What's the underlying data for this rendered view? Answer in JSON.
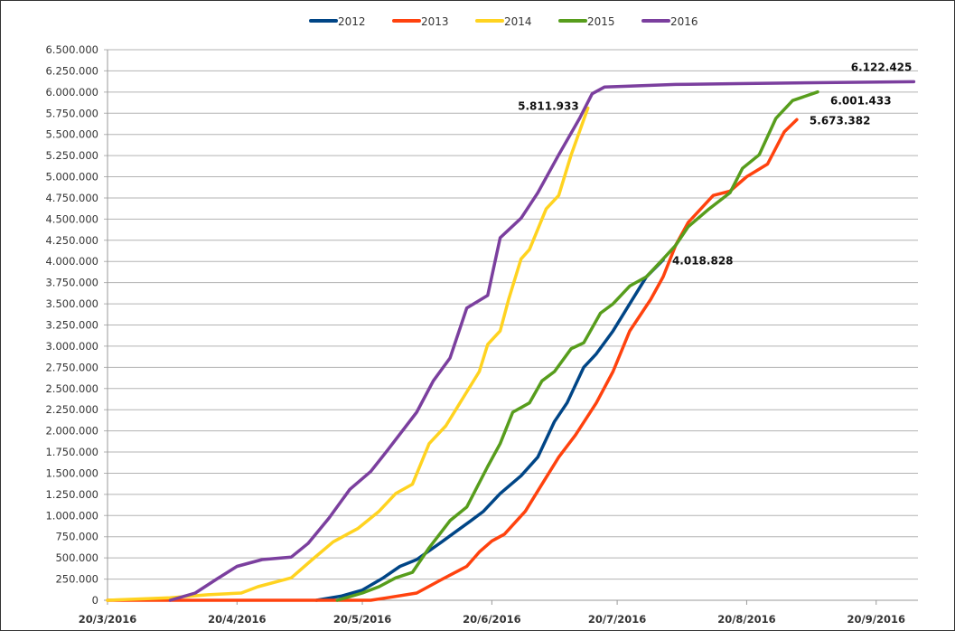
{
  "chart_data": {
    "type": "line",
    "title": "",
    "xlabel": "",
    "ylabel": "",
    "x_type": "date",
    "xlim": [
      "2016-03-20",
      "2016-09-30"
    ],
    "ylim": [
      0,
      6500000
    ],
    "y_tick_step": 250000,
    "y_ticks": [
      "0",
      "250.000",
      "500.000",
      "750.000",
      "1.000.000",
      "1.250.000",
      "1.500.000",
      "1.750.000",
      "2.000.000",
      "2.250.000",
      "2.500.000",
      "2.750.000",
      "3.000.000",
      "3.250.000",
      "3.500.000",
      "3.750.000",
      "4.000.000",
      "4.250.000",
      "4.500.000",
      "4.750.000",
      "5.000.000",
      "5.250.000",
      "5.500.000",
      "5.750.000",
      "6.000.000",
      "6.250.000",
      "6.500.000"
    ],
    "x_ticks": [
      {
        "date": "2016-03-20",
        "label": "20/3/2016"
      },
      {
        "date": "2016-04-20",
        "label": "20/4/2016"
      },
      {
        "date": "2016-05-20",
        "label": "20/5/2016"
      },
      {
        "date": "2016-06-20",
        "label": "20/6/2016"
      },
      {
        "date": "2016-07-20",
        "label": "20/7/2016"
      },
      {
        "date": "2016-08-20",
        "label": "20/8/2016"
      },
      {
        "date": "2016-09-20",
        "label": "20/9/2016"
      }
    ],
    "grid": "horizontal",
    "legend_position": "top",
    "series": [
      {
        "name": "2012",
        "color": "#004586",
        "points": [
          [
            "2016-05-09",
            0
          ],
          [
            "2016-05-15",
            50000
          ],
          [
            "2016-05-20",
            120000
          ],
          [
            "2016-05-25",
            265000
          ],
          [
            "2016-05-29",
            400000
          ],
          [
            "2016-06-02",
            480000
          ],
          [
            "2016-06-08",
            690000
          ],
          [
            "2016-06-15",
            940000
          ],
          [
            "2016-06-18",
            1050000
          ],
          [
            "2016-06-22",
            1260000
          ],
          [
            "2016-06-27",
            1470000
          ],
          [
            "2016-07-01",
            1690000
          ],
          [
            "2016-07-05",
            2110000
          ],
          [
            "2016-07-08",
            2330000
          ],
          [
            "2016-07-12",
            2750000
          ],
          [
            "2016-07-15",
            2910000
          ],
          [
            "2016-07-19",
            3180000
          ],
          [
            "2016-07-23",
            3500000
          ],
          [
            "2016-07-27",
            3820000
          ],
          [
            "2016-07-31",
            4018828
          ]
        ],
        "end_label": "4.018.828"
      },
      {
        "name": "2013",
        "color": "#ff420e",
        "points": [
          [
            "2016-03-20",
            0
          ],
          [
            "2016-05-22",
            0
          ],
          [
            "2016-05-26",
            30000
          ],
          [
            "2016-06-02",
            85000
          ],
          [
            "2016-06-08",
            245000
          ],
          [
            "2016-06-14",
            400000
          ],
          [
            "2016-06-17",
            570000
          ],
          [
            "2016-06-20",
            700000
          ],
          [
            "2016-06-23",
            780000
          ],
          [
            "2016-06-28",
            1050000
          ],
          [
            "2016-07-02",
            1370000
          ],
          [
            "2016-07-06",
            1690000
          ],
          [
            "2016-07-10",
            1950000
          ],
          [
            "2016-07-15",
            2330000
          ],
          [
            "2016-07-19",
            2700000
          ],
          [
            "2016-07-23",
            3180000
          ],
          [
            "2016-07-28",
            3550000
          ],
          [
            "2016-07-31",
            3820000
          ],
          [
            "2016-08-03",
            4190000
          ],
          [
            "2016-08-06",
            4460000
          ],
          [
            "2016-08-12",
            4780000
          ],
          [
            "2016-08-16",
            4830000
          ],
          [
            "2016-08-20",
            5000000
          ],
          [
            "2016-08-25",
            5150000
          ],
          [
            "2016-08-29",
            5530000
          ],
          [
            "2016-09-01",
            5673382
          ]
        ],
        "end_label": "5.673.382"
      },
      {
        "name": "2014",
        "color": "#ffd320",
        "points": [
          [
            "2016-03-20",
            0
          ],
          [
            "2016-04-04",
            30000
          ],
          [
            "2016-04-13",
            65000
          ],
          [
            "2016-04-21",
            85000
          ],
          [
            "2016-04-25",
            160000
          ],
          [
            "2016-05-03",
            265000
          ],
          [
            "2016-05-08",
            480000
          ],
          [
            "2016-05-13",
            690000
          ],
          [
            "2016-05-19",
            850000
          ],
          [
            "2016-05-24",
            1050000
          ],
          [
            "2016-05-28",
            1260000
          ],
          [
            "2016-06-01",
            1370000
          ],
          [
            "2016-06-05",
            1850000
          ],
          [
            "2016-06-09",
            2060000
          ],
          [
            "2016-06-13",
            2380000
          ],
          [
            "2016-06-17",
            2700000
          ],
          [
            "2016-06-19",
            3020000
          ],
          [
            "2016-06-22",
            3180000
          ],
          [
            "2016-06-24",
            3550000
          ],
          [
            "2016-06-27",
            4030000
          ],
          [
            "2016-06-29",
            4140000
          ],
          [
            "2016-07-03",
            4620000
          ],
          [
            "2016-07-06",
            4780000
          ],
          [
            "2016-07-09",
            5260000
          ],
          [
            "2016-07-13",
            5811933
          ]
        ],
        "end_label": "5.811.933"
      },
      {
        "name": "2015",
        "color": "#579d1c",
        "points": [
          [
            "2016-05-14",
            0
          ],
          [
            "2016-05-20",
            85000
          ],
          [
            "2016-05-24",
            160000
          ],
          [
            "2016-05-28",
            265000
          ],
          [
            "2016-06-01",
            330000
          ],
          [
            "2016-06-05",
            620000
          ],
          [
            "2016-06-10",
            940000
          ],
          [
            "2016-06-14",
            1100000
          ],
          [
            "2016-06-19",
            1580000
          ],
          [
            "2016-06-22",
            1850000
          ],
          [
            "2016-06-25",
            2220000
          ],
          [
            "2016-06-29",
            2330000
          ],
          [
            "2016-07-02",
            2590000
          ],
          [
            "2016-07-05",
            2700000
          ],
          [
            "2016-07-09",
            2970000
          ],
          [
            "2016-07-12",
            3040000
          ],
          [
            "2016-07-16",
            3390000
          ],
          [
            "2016-07-19",
            3500000
          ],
          [
            "2016-07-23",
            3710000
          ],
          [
            "2016-07-27",
            3820000
          ],
          [
            "2016-07-31",
            4030000
          ],
          [
            "2016-08-03",
            4190000
          ],
          [
            "2016-08-06",
            4410000
          ],
          [
            "2016-08-11",
            4620000
          ],
          [
            "2016-08-16",
            4810000
          ],
          [
            "2016-08-19",
            5100000
          ],
          [
            "2016-08-23",
            5260000
          ],
          [
            "2016-08-27",
            5690000
          ],
          [
            "2016-08-31",
            5900000
          ],
          [
            "2016-09-06",
            6001433
          ]
        ],
        "end_label": "6.001.433"
      },
      {
        "name": "2016",
        "color": "#7b3f9e",
        "points": [
          [
            "2016-04-04",
            0
          ],
          [
            "2016-04-10",
            85000
          ],
          [
            "2016-04-15",
            245000
          ],
          [
            "2016-04-20",
            400000
          ],
          [
            "2016-04-26",
            480000
          ],
          [
            "2016-05-03",
            510000
          ],
          [
            "2016-05-07",
            670000
          ],
          [
            "2016-05-12",
            970000
          ],
          [
            "2016-05-17",
            1310000
          ],
          [
            "2016-05-22",
            1520000
          ],
          [
            "2016-05-26",
            1770000
          ],
          [
            "2016-06-02",
            2220000
          ],
          [
            "2016-06-06",
            2590000
          ],
          [
            "2016-06-10",
            2860000
          ],
          [
            "2016-06-14",
            3450000
          ],
          [
            "2016-06-19",
            3600000
          ],
          [
            "2016-06-22",
            4280000
          ],
          [
            "2016-06-27",
            4510000
          ],
          [
            "2016-07-01",
            4810000
          ],
          [
            "2016-07-06",
            5260000
          ],
          [
            "2016-07-11",
            5690000
          ],
          [
            "2016-07-14",
            5980000
          ],
          [
            "2016-07-17",
            6060000
          ],
          [
            "2016-07-23",
            6070000
          ],
          [
            "2016-08-03",
            6090000
          ],
          [
            "2016-08-18",
            6100000
          ],
          [
            "2016-09-13",
            6115000
          ],
          [
            "2016-09-29",
            6122425
          ]
        ],
        "end_label": "6.122.425"
      }
    ]
  }
}
